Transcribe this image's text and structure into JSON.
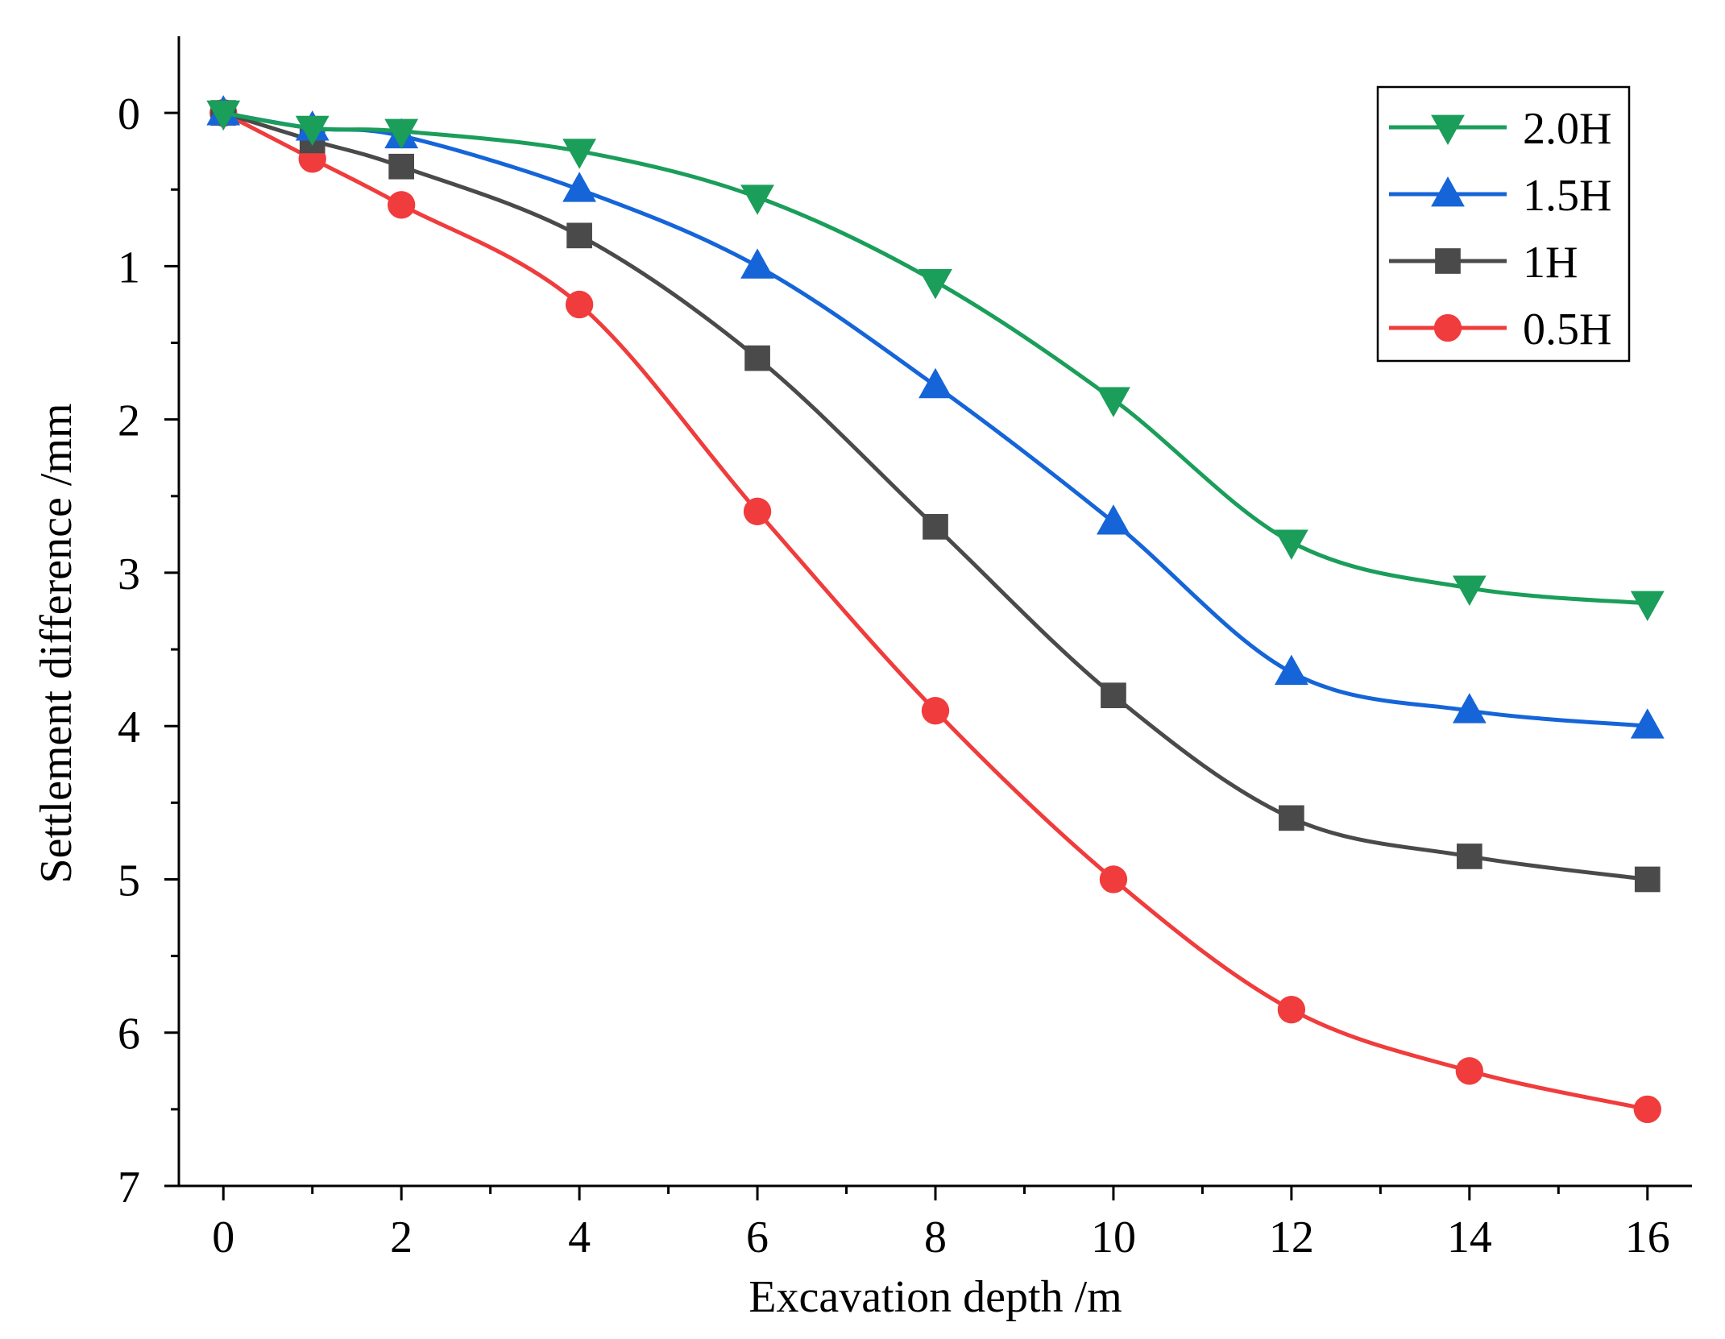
{
  "chart_data": {
    "type": "line",
    "title": "",
    "xlabel": "Excavation depth /m",
    "ylabel": "Settlement difference /mm",
    "xlim": [
      -0.5,
      16.5
    ],
    "ylim": [
      -0.5,
      7
    ],
    "y_inverted": true,
    "x_ticks": [
      0,
      2,
      4,
      6,
      8,
      10,
      12,
      14,
      16
    ],
    "x_minor_ticks": [
      1,
      3,
      5,
      7,
      9,
      11,
      13,
      15
    ],
    "y_ticks": [
      0,
      1,
      2,
      3,
      4,
      5,
      6,
      7
    ],
    "y_minor_ticks": [
      0.5,
      1.5,
      2.5,
      3.5,
      4.5,
      5.5,
      6.5
    ],
    "grid": false,
    "legend_position": "top-right",
    "x": [
      0,
      1,
      2,
      4,
      6,
      8,
      10,
      12,
      14,
      16
    ],
    "series": [
      {
        "name": "2.0H",
        "color": "#1a9e5a",
        "marker": "triangle-down",
        "values": [
          0,
          0.1,
          0.12,
          0.25,
          0.55,
          1.1,
          1.87,
          2.8,
          3.1,
          3.2
        ]
      },
      {
        "name": "1.5H",
        "color": "#1565d8",
        "marker": "triangle-up",
        "values": [
          0,
          0.1,
          0.15,
          0.5,
          1.0,
          1.78,
          2.67,
          3.65,
          3.9,
          4.0
        ]
      },
      {
        "name": "1H",
        "color": "#4a4a4a",
        "marker": "square",
        "values": [
          0,
          0.18,
          0.35,
          0.8,
          1.6,
          2.7,
          3.8,
          4.6,
          4.85,
          5.0
        ]
      },
      {
        "name": "0.5H",
        "color": "#f03c3c",
        "marker": "circle",
        "values": [
          0,
          0.3,
          0.6,
          1.25,
          2.6,
          3.9,
          5.0,
          5.85,
          6.25,
          6.5
        ]
      }
    ]
  }
}
